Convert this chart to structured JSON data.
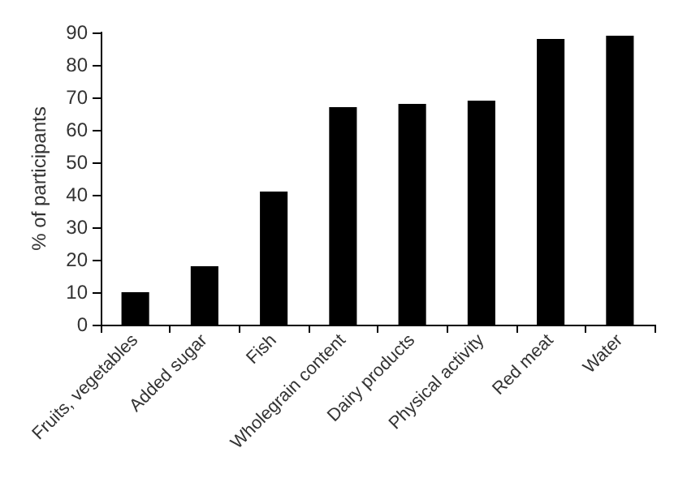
{
  "chart_data": {
    "type": "bar",
    "ylabel": "% of participants",
    "categories": [
      "Fruits, vegetables",
      "Added sugar",
      "Fish",
      "Wholegrain content",
      "Dairy products",
      "Physical activity",
      "Red meat",
      "Water"
    ],
    "values": [
      10,
      18,
      41,
      67,
      68,
      69,
      88,
      89
    ],
    "color": "#000000",
    "ylim": [
      0,
      90
    ],
    "yticks": [
      0,
      10,
      20,
      30,
      40,
      50,
      60,
      70,
      80,
      90
    ],
    "grid": false
  }
}
